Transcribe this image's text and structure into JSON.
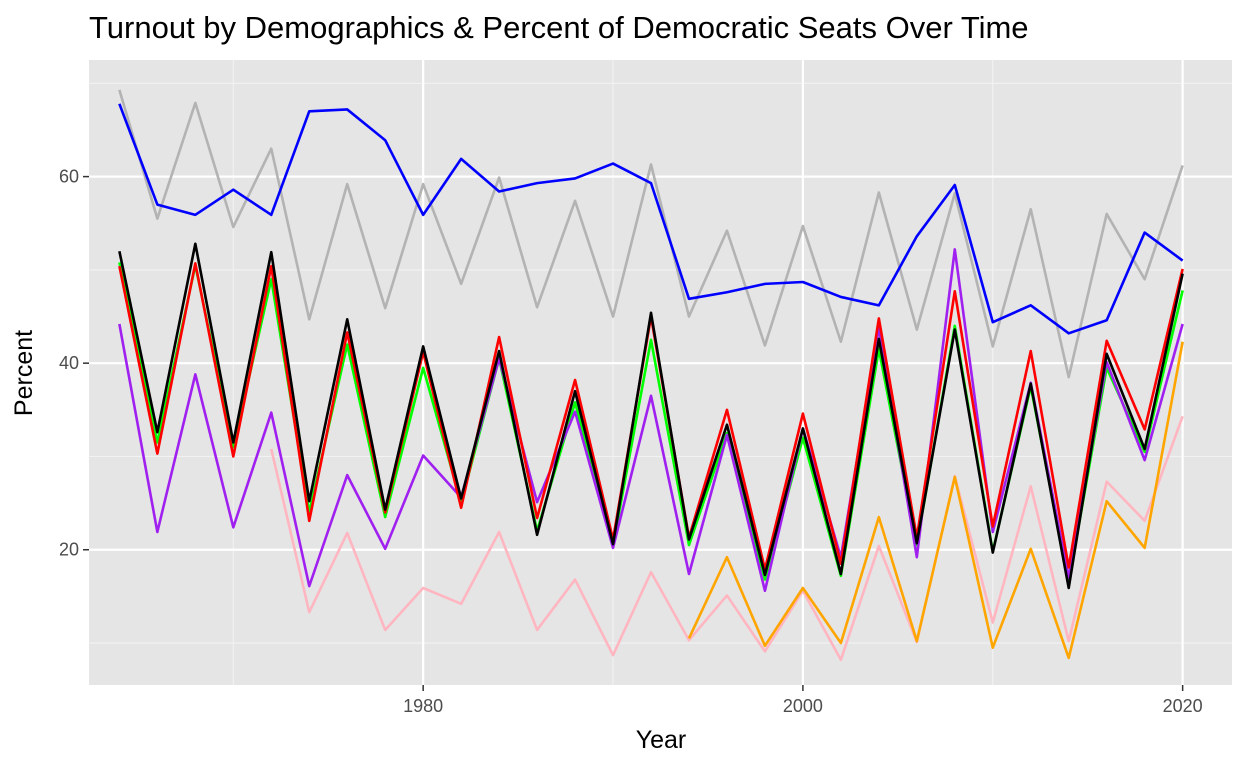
{
  "chart_data": {
    "type": "line",
    "title": "Turnout by Demographics & Percent of Democratic Seats Over Time",
    "xlabel": "Year",
    "ylabel": "Percent",
    "xlim": [
      1962.4,
      2022.6
    ],
    "ylim": [
      5.5,
      72.5
    ],
    "xticks": [
      1980,
      2000,
      2020
    ],
    "yticks": [
      20,
      40,
      60
    ],
    "x_minor_breaks": [
      1970,
      1990,
      2010
    ],
    "y_minor_breaks": [
      10,
      30,
      50,
      70
    ],
    "grid": true,
    "legend": "none",
    "x": [
      1964,
      1966,
      1968,
      1970,
      1972,
      1974,
      1976,
      1978,
      1980,
      1982,
      1984,
      1986,
      1988,
      1990,
      1992,
      1994,
      1996,
      1998,
      2000,
      2002,
      2004,
      2006,
      2008,
      2010,
      2012,
      2014,
      2016,
      2018,
      2020
    ],
    "series": [
      {
        "color": "#b3b3b3",
        "values": [
          69.3,
          55.5,
          67.9,
          54.6,
          63.0,
          44.7,
          59.2,
          45.9,
          59.2,
          48.5,
          59.9,
          46.0,
          57.4,
          45.0,
          61.3,
          45.0,
          54.2,
          41.9,
          54.7,
          42.3,
          58.3,
          43.6,
          58.2,
          41.8,
          56.5,
          38.5,
          56.0,
          49.0,
          61.2
        ]
      },
      {
        "color": "#0000ff",
        "values": [
          67.8,
          57.0,
          55.9,
          58.6,
          55.9,
          67.0,
          67.2,
          63.9,
          55.9,
          61.9,
          58.4,
          59.3,
          59.8,
          61.4,
          59.3,
          46.9,
          47.6,
          48.5,
          48.7,
          47.1,
          46.2,
          53.6,
          59.1,
          44.4,
          46.2,
          43.2,
          44.6,
          54.0,
          51.0
        ]
      },
      {
        "color": "#ffb6c1",
        "values": [
          null,
          null,
          null,
          null,
          30.8,
          13.3,
          21.8,
          11.4,
          15.9,
          14.2,
          21.9,
          11.4,
          16.8,
          8.7,
          17.6,
          10.3,
          15.1,
          9.1,
          15.6,
          8.2,
          20.4,
          10.1,
          27.9,
          12.2,
          26.8,
          10.2,
          27.3,
          23.1,
          34.3
        ]
      },
      {
        "color": "#ffa500",
        "values": [
          null,
          null,
          null,
          null,
          null,
          null,
          null,
          null,
          null,
          null,
          null,
          null,
          null,
          null,
          null,
          10.5,
          19.2,
          9.7,
          15.9,
          10.0,
          23.5,
          10.2,
          27.8,
          9.5,
          20.1,
          8.4,
          25.2,
          20.2,
          42.3
        ]
      },
      {
        "color": "#00ff00",
        "values": [
          50.8,
          31.5,
          50.5,
          31.0,
          49.0,
          24.0,
          42.0,
          23.5,
          39.5,
          25.0,
          40.5,
          22.0,
          35.8,
          20.5,
          42.5,
          20.5,
          32.5,
          16.8,
          32.0,
          17.2,
          41.5,
          20.5,
          44.0,
          19.8,
          37.5,
          16.5,
          39.5,
          30.5,
          47.8
        ]
      },
      {
        "color": "#a020f0",
        "values": [
          44.2,
          21.9,
          38.8,
          22.4,
          34.7,
          16.1,
          28.0,
          20.1,
          30.1,
          25.6,
          40.5,
          25.1,
          34.8,
          20.2,
          36.5,
          17.4,
          32.3,
          15.6,
          33.0,
          19.2,
          43.8,
          19.2,
          52.2,
          21.9,
          37.9,
          17.0,
          40.1,
          29.6,
          44.2
        ]
      },
      {
        "color": "#ff0000",
        "values": [
          50.4,
          30.3,
          50.7,
          30.0,
          50.4,
          23.1,
          43.3,
          24.0,
          41.2,
          24.5,
          42.8,
          23.4,
          38.2,
          21.1,
          45.0,
          21.3,
          35.0,
          17.9,
          34.6,
          18.5,
          44.8,
          21.3,
          47.7,
          22.5,
          41.3,
          18.1,
          42.4,
          32.9,
          50.1
        ]
      },
      {
        "color": "#000000",
        "values": [
          52.0,
          32.6,
          52.8,
          31.5,
          51.9,
          25.2,
          44.7,
          24.3,
          41.8,
          25.5,
          41.3,
          21.6,
          37.0,
          20.6,
          45.4,
          21.1,
          33.4,
          17.3,
          33.0,
          17.4,
          42.6,
          20.7,
          43.6,
          19.7,
          37.8,
          15.9,
          41.0,
          30.8,
          49.6
        ]
      }
    ]
  }
}
